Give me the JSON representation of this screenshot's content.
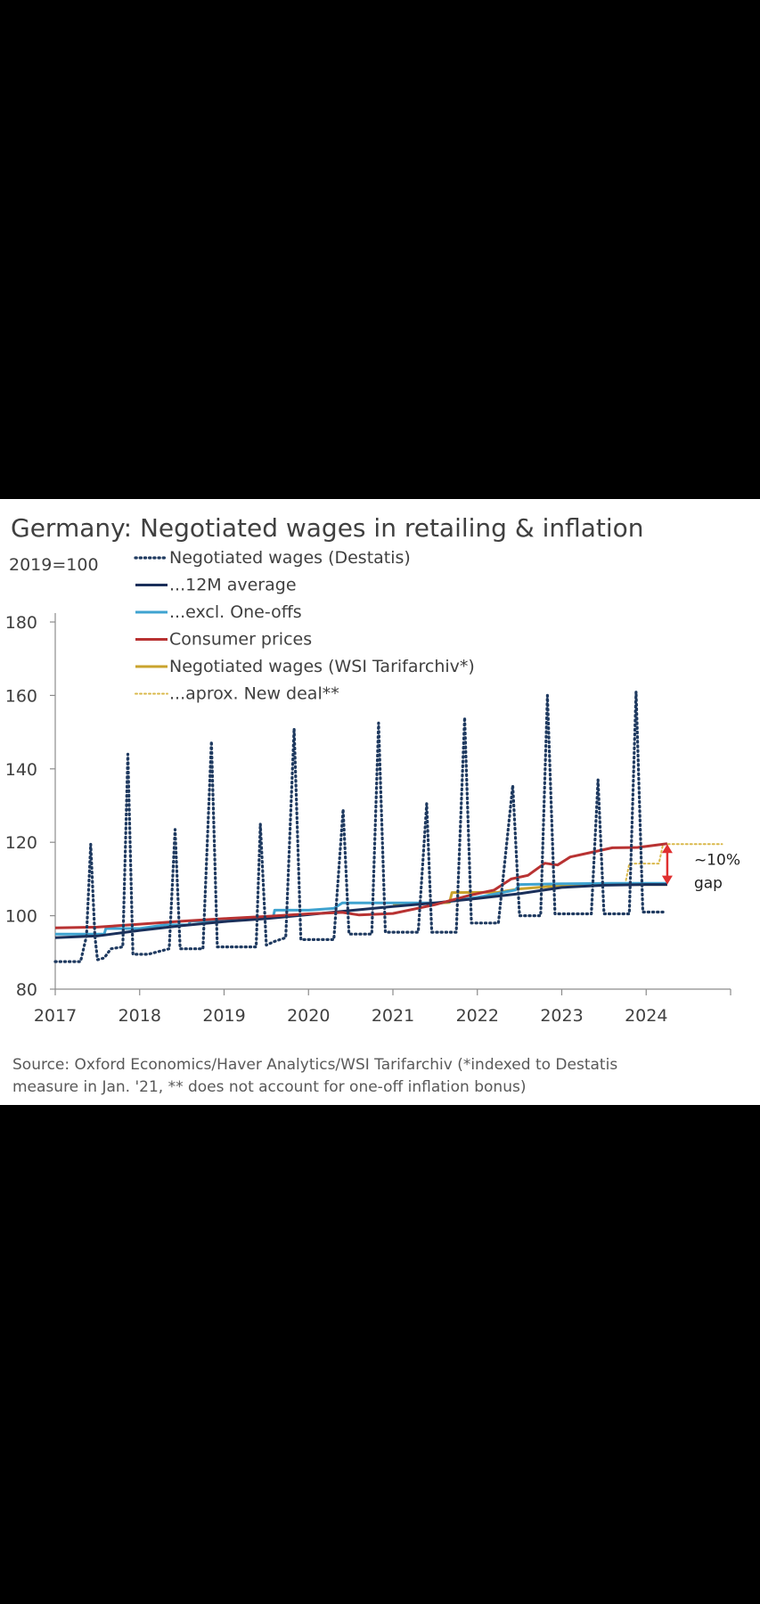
{
  "chart_data": {
    "type": "line",
    "title": "Germany: Negotiated wages in retailing & inflation",
    "ylabel": "2019=100",
    "xlabel": "",
    "xlim": [
      2017,
      2025
    ],
    "ylim": [
      80,
      180
    ],
    "x_ticks": [
      "2017",
      "2018",
      "2019",
      "2020",
      "2021",
      "2022",
      "2023",
      "2024"
    ],
    "y_ticks": [
      "80",
      "100",
      "120",
      "140",
      "160",
      "180"
    ],
    "grid": false,
    "legend_position": "top-left",
    "source": "Source: Oxford Economics/Haver Analytics/WSI Tarifarchiv (*indexed to Destatis measure in Jan. '21, ** does not account for one-off inflation bonus)",
    "annotation": {
      "label_1": "~10%",
      "label_2": "gap",
      "x": 2024.25,
      "y_low": 108.5,
      "y_high": 119.5
    },
    "series": [
      {
        "name": "Negotiated wages (Destatis)",
        "color": "#1f3a60",
        "style": "dotted",
        "points": [
          [
            2017.0,
            87.5
          ],
          [
            2017.3,
            87.5
          ],
          [
            2017.37,
            94.5
          ],
          [
            2017.42,
            119.5
          ],
          [
            2017.47,
            94.5
          ],
          [
            2017.5,
            88
          ],
          [
            2017.58,
            88.5
          ],
          [
            2017.66,
            91
          ],
          [
            2017.8,
            91.5
          ],
          [
            2017.86,
            144
          ],
          [
            2017.92,
            89.5
          ],
          [
            2018.1,
            89.5
          ],
          [
            2018.35,
            91
          ],
          [
            2018.42,
            123.5
          ],
          [
            2018.48,
            91
          ],
          [
            2018.75,
            91
          ],
          [
            2018.85,
            147.5
          ],
          [
            2018.92,
            91.5
          ],
          [
            2019.38,
            91.5
          ],
          [
            2019.43,
            125
          ],
          [
            2019.5,
            92
          ],
          [
            2019.6,
            93
          ],
          [
            2019.73,
            94
          ],
          [
            2019.83,
            151
          ],
          [
            2019.91,
            93.5
          ],
          [
            2020.3,
            93.5
          ],
          [
            2020.41,
            129
          ],
          [
            2020.48,
            95
          ],
          [
            2020.75,
            95
          ],
          [
            2020.83,
            152.5
          ],
          [
            2020.91,
            95.5
          ],
          [
            2021.3,
            95.5
          ],
          [
            2021.4,
            130.5
          ],
          [
            2021.46,
            95.5
          ],
          [
            2021.75,
            95.5
          ],
          [
            2021.85,
            154
          ],
          [
            2021.93,
            98
          ],
          [
            2022.25,
            98
          ],
          [
            2022.42,
            135.5
          ],
          [
            2022.5,
            100
          ],
          [
            2022.75,
            100
          ],
          [
            2022.83,
            160
          ],
          [
            2022.92,
            100.5
          ],
          [
            2023.35,
            100.5
          ],
          [
            2023.43,
            137
          ],
          [
            2023.5,
            100.5
          ],
          [
            2023.8,
            100.5
          ],
          [
            2023.88,
            161
          ],
          [
            2023.96,
            101
          ],
          [
            2024.2,
            101
          ]
        ]
      },
      {
        "name": "...12M average",
        "color": "#1a2f5a",
        "style": "solid",
        "points": [
          [
            2017.0,
            94
          ],
          [
            2017.5,
            94.5
          ],
          [
            2018.0,
            96
          ],
          [
            2018.5,
            97.3
          ],
          [
            2019.0,
            98.4
          ],
          [
            2019.5,
            99.2
          ],
          [
            2020.0,
            100.3
          ],
          [
            2020.5,
            101.4
          ],
          [
            2021.0,
            102.5
          ],
          [
            2021.5,
            103.5
          ],
          [
            2022.0,
            104.7
          ],
          [
            2022.5,
            106
          ],
          [
            2023.0,
            107.7
          ],
          [
            2023.5,
            108.3
          ],
          [
            2024.0,
            108.5
          ],
          [
            2024.25,
            108.5
          ]
        ]
      },
      {
        "name": "...excl. One-offs",
        "color": "#3fa3d0",
        "style": "solid",
        "points": [
          [
            2017.0,
            95
          ],
          [
            2017.58,
            95
          ],
          [
            2017.6,
            96.5
          ],
          [
            2018.0,
            96.5
          ],
          [
            2018.3,
            97.5
          ],
          [
            2018.58,
            97.5
          ],
          [
            2018.6,
            98.5
          ],
          [
            2019.0,
            98.5
          ],
          [
            2019.3,
            99.5
          ],
          [
            2019.58,
            99.5
          ],
          [
            2019.6,
            101.5
          ],
          [
            2020.0,
            101.5
          ],
          [
            2020.3,
            102
          ],
          [
            2020.4,
            103.5
          ],
          [
            2021.0,
            103.5
          ],
          [
            2021.58,
            103.5
          ],
          [
            2021.6,
            103.7
          ],
          [
            2022.0,
            105
          ],
          [
            2022.45,
            107
          ],
          [
            2022.5,
            108.5
          ],
          [
            2023.0,
            108.7
          ],
          [
            2023.58,
            108.8
          ],
          [
            2024.25,
            108.8
          ]
        ]
      },
      {
        "name": "Consumer prices",
        "color": "#b83232",
        "style": "solid",
        "points": [
          [
            2017.0,
            96.7
          ],
          [
            2017.5,
            96.9
          ],
          [
            2018.0,
            97.7
          ],
          [
            2018.5,
            98.5
          ],
          [
            2019.0,
            99.2
          ],
          [
            2019.5,
            99.8
          ],
          [
            2020.0,
            100.5
          ],
          [
            2020.4,
            100.9
          ],
          [
            2020.6,
            100.2
          ],
          [
            2021.0,
            100.6
          ],
          [
            2021.5,
            103
          ],
          [
            2021.9,
            105.5
          ],
          [
            2022.2,
            107
          ],
          [
            2022.4,
            110
          ],
          [
            2022.6,
            111
          ],
          [
            2022.8,
            114.3
          ],
          [
            2022.95,
            113.8
          ],
          [
            2023.1,
            116
          ],
          [
            2023.4,
            117.5
          ],
          [
            2023.6,
            118.5
          ],
          [
            2023.9,
            118.6
          ],
          [
            2024.25,
            119.6
          ]
        ]
      },
      {
        "name": "Negotiated wages (WSI Tarifarchiv*)",
        "color": "#c9a32d",
        "style": "solid",
        "points": [
          [
            2021.0,
            103.3
          ],
          [
            2021.5,
            103.4
          ],
          [
            2021.67,
            103.6
          ],
          [
            2021.7,
            106.3
          ],
          [
            2022.25,
            106.4
          ],
          [
            2022.5,
            107.3
          ],
          [
            2023.0,
            108.2
          ],
          [
            2023.5,
            108.5
          ],
          [
            2024.25,
            108.5
          ]
        ]
      },
      {
        "name": "...aprox. New deal**",
        "color": "#d9b84a",
        "style": "dotted",
        "points": [
          [
            2023.75,
            108.5
          ],
          [
            2023.8,
            114.2
          ],
          [
            2024.15,
            114.2
          ],
          [
            2024.2,
            119.5
          ],
          [
            2024.9,
            119.5
          ]
        ]
      }
    ]
  }
}
